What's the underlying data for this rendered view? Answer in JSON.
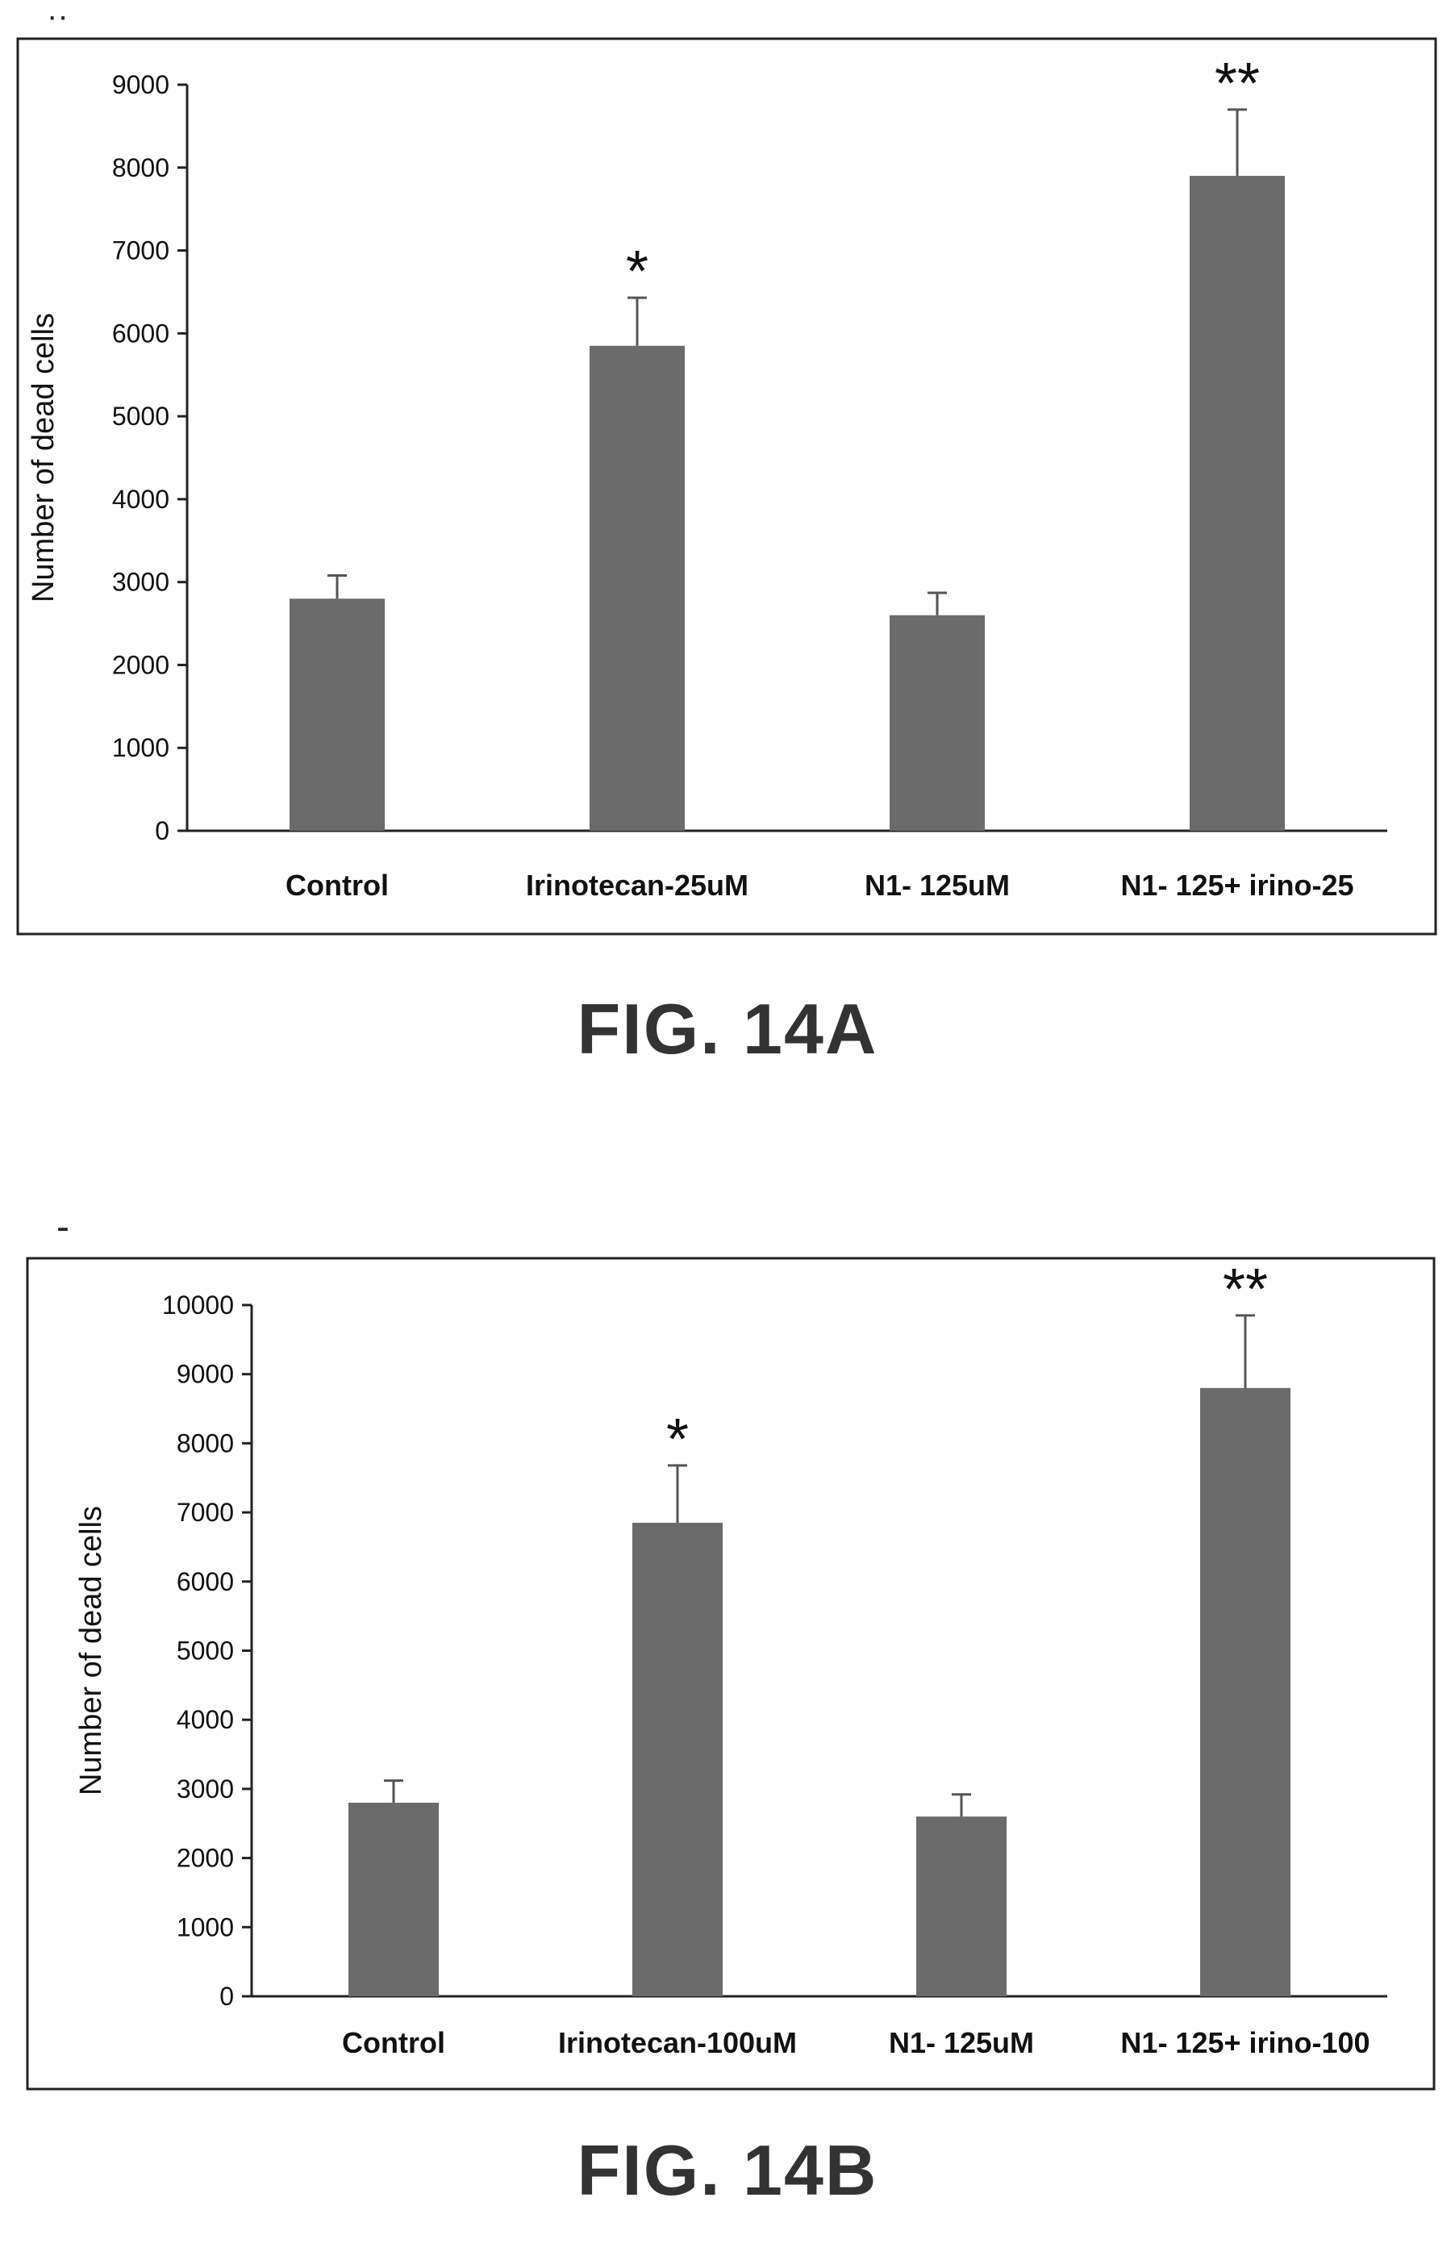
{
  "chart_data": [
    {
      "type": "bar",
      "categories": [
        "Control",
        "Irinotecan-25uM",
        "N1- 125uM",
        "N1- 125+ irino-25"
      ],
      "values": [
        2800,
        5850,
        2600,
        7900
      ],
      "errors": [
        280,
        580,
        270,
        800
      ],
      "significance": [
        "",
        "*",
        "",
        "**"
      ],
      "title": "",
      "xlabel": "",
      "ylabel": "Number of dead cells",
      "ylim": [
        0,
        9000
      ],
      "yticks": [
        0,
        1000,
        2000,
        3000,
        4000,
        5000,
        6000,
        7000,
        8000,
        9000
      ],
      "bar_color": "#6b6b6b",
      "grid": false,
      "legend": "none"
    },
    {
      "type": "bar",
      "categories": [
        "Control",
        "Irinotecan-100uM",
        "N1- 125uM",
        "N1- 125+ irino-100"
      ],
      "values": [
        2800,
        6850,
        2600,
        8800
      ],
      "errors": [
        320,
        830,
        320,
        1050
      ],
      "significance": [
        "",
        "*",
        "",
        "**"
      ],
      "title": "",
      "xlabel": "",
      "ylabel": "Number of dead cells",
      "ylim": [
        0,
        10000
      ],
      "yticks": [
        0,
        1000,
        2000,
        3000,
        4000,
        5000,
        6000,
        7000,
        8000,
        9000,
        10000
      ],
      "bar_color": "#6b6b6b",
      "grid": false,
      "legend": "none"
    }
  ],
  "figures": {
    "a_label": "FIG. 14A",
    "b_label": "FIG. 14B"
  }
}
